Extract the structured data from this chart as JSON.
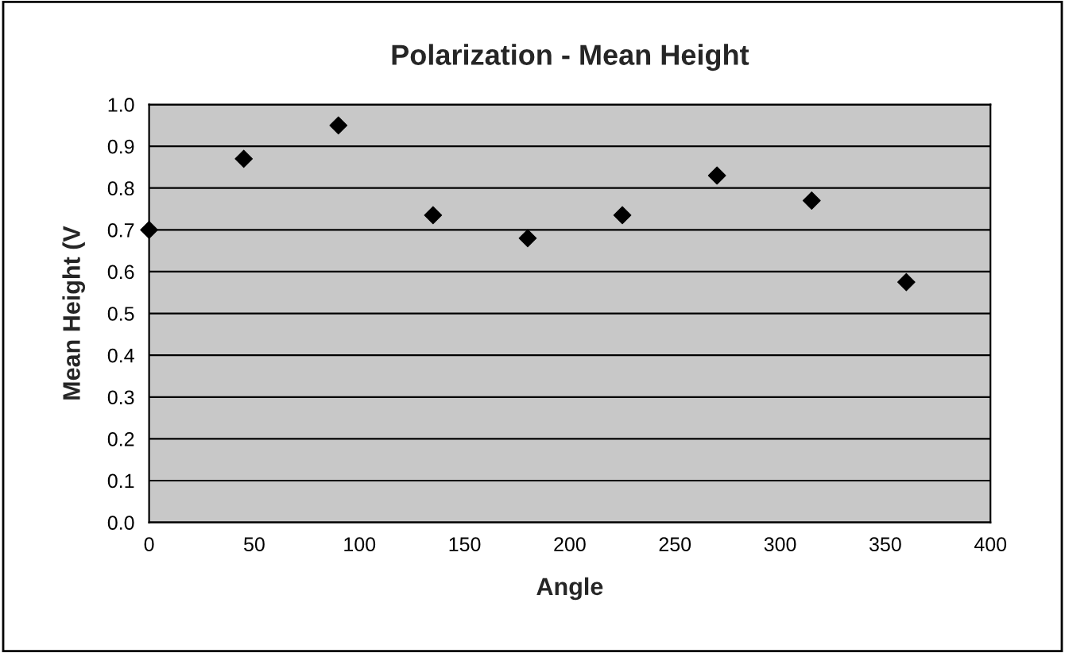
{
  "chart_data": {
    "type": "scatter",
    "title": "Polarization - Mean Height",
    "xlabel": "Angle",
    "ylabel": "Mean Height (V",
    "x": [
      0,
      45,
      90,
      135,
      180,
      225,
      270,
      315,
      360
    ],
    "series": [
      {
        "color": "#000000",
        "values": [
          0.7,
          0.87,
          0.95,
          0.735,
          0.68,
          0.735,
          0.83,
          0.77,
          0.575
        ]
      }
    ],
    "marker": "diamond",
    "xlim": [
      0,
      400
    ],
    "xticks": [
      0,
      50,
      100,
      150,
      200,
      250,
      300,
      350,
      400
    ],
    "ylim": [
      0,
      1
    ],
    "yticks": [
      {
        "value": 0,
        "label": "0.0"
      },
      {
        "value": 0.1,
        "label": "0.1"
      },
      {
        "value": 0.2,
        "label": "0.2"
      },
      {
        "value": 0.3,
        "label": "0.3"
      },
      {
        "value": 0.4,
        "label": "0.4"
      },
      {
        "value": 0.5,
        "label": "0.5"
      },
      {
        "value": 0.6,
        "label": "0.6"
      },
      {
        "value": 0.7,
        "label": "0.7"
      },
      {
        "value": 0.8,
        "label": "0.8"
      },
      {
        "value": 0.9,
        "label": "0.9"
      },
      {
        "value": 1,
        "label": "1.0"
      }
    ],
    "grid": "y",
    "legend": false
  }
}
